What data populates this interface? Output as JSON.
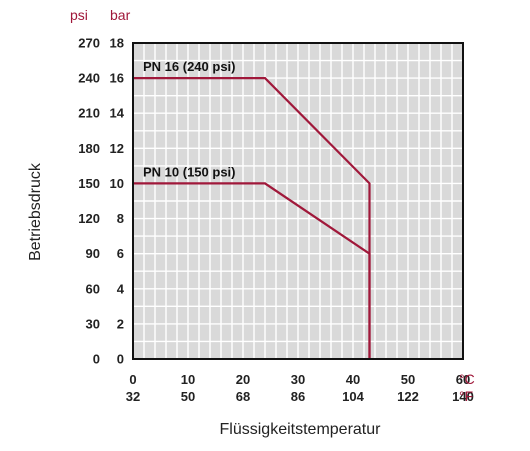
{
  "chart_data": {
    "type": "line",
    "ylabel": "Betriebsdruck",
    "xlabel": "Flüssigkeitstemperatur",
    "y_units": {
      "left": "psi",
      "right": "bar"
    },
    "x_units": {
      "top": "°C",
      "bottom": "°F"
    },
    "y_ticks_bar": [
      0,
      2,
      4,
      6,
      8,
      10,
      12,
      14,
      16,
      18
    ],
    "y_ticks_psi": [
      "0",
      "30",
      "60",
      "90",
      "120",
      "150",
      "180",
      "210",
      "240",
      "270"
    ],
    "x_ticks_c": [
      0,
      10,
      20,
      30,
      40,
      50,
      60
    ],
    "x_ticks_f": [
      "32",
      "50",
      "68",
      "86",
      "104",
      "122",
      "140"
    ],
    "xlim": [
      0,
      60
    ],
    "ylim": [
      0,
      18
    ],
    "grid": true,
    "series": [
      {
        "name": "PN 16 (240 psi)",
        "x": [
          0,
          24,
          43,
          43
        ],
        "y": [
          16,
          16,
          10,
          0
        ]
      },
      {
        "name": "PN 10 (150 psi)",
        "x": [
          0,
          24,
          43,
          43
        ],
        "y": [
          10,
          10,
          6,
          0
        ]
      }
    ],
    "colors": {
      "series": "#a0183a",
      "grid_bg": "#d9d9d9",
      "grid_line": "#ffffff",
      "unit_text": "#a0183a"
    }
  }
}
